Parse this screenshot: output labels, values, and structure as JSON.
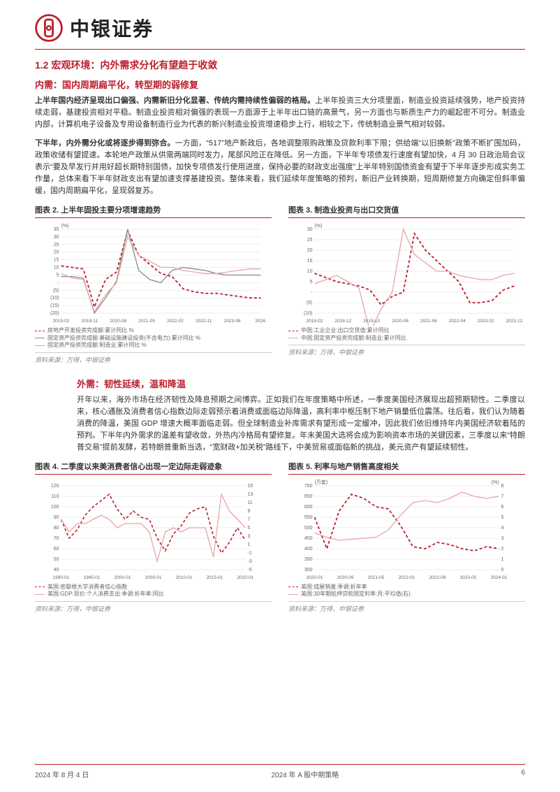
{
  "brand": "中银证券",
  "section_heading": "1.2 宏观环境：内外需求分化有望趋于收敛",
  "sub1_title": "内需：国内周期扁平化，转型期的弱修复",
  "sub1_p1_lead": "上半年国内经济呈现出口偏强、内需新旧分化显著、传统内需持续性偏弱的格局。",
  "sub1_p1_rest": "上半年投资三大分项里面，制造业投资延续强势，地产投资持续走弱，基建投资相对平稳。制造业投资相对偏强的表现一方面源于上半年出口链的高景气，另一方面也与新质生产力的崛起密不可分。制造业内部，计算机电子设备及专用设备制造行业为代表的新兴制造业投资增速稳步上行，相较之下，传统制造业景气相对较弱。",
  "sub1_p2_lead": "下半年，内外需分化或将逐步得到弥合。",
  "sub1_p2_rest": "一方面，“517”地产新政后，各地调整限购政策及贷款利率下限；供给端“以旧换新”政策不断扩围加码，政策收储有望提速。本轮地产政策从供需两端同时发力，尾部风险正在降低。另一方面，下半年专项债发行速度有望加快，4 月 30 日政治局会议表示“要及早发行并用好超长期特别国债，加快专项债发行使用进度，保持必要的财政支出强度”上半年特别国债资金有望于下半年逐步形成实务工作量，总体来看下半年财政支出有望加速支撑基建投资。整体来看，我们延续年度策略的预判，新旧产业转换期，短周期修复方向确定但斜率偏缓，国内周期扁平化，呈现弱复苏。",
  "sub2_title": "外需：韧性延续，温和降温",
  "sub2_p1": "开年以来，海外市场在经济韧性及降息预期之间博弈。正如我们在年度策略中所述，一季度美国经济展现出超预期韧性。二季度以来，核心通胀及消费者信心指数边际走弱预示着消费或面临边际降温，高利率中枢压制下地产销量低位震荡。往后看，我们认为随着消费的降温，美国 GDP 增速大概率面临走弱。但全球制造业补库需求有望形成一定缓冲，因此我们依旧维持年内美国经济软着陆的预判。下半年内外需求的温差有望收敛，外热内冷格局有望修复。年末美国大选将会成为影响资本市场的关键因素，三季度以来“特朗普交易”提前发酵，若特朗普重新当选，“宽财政+加关税”路线下，中美贸易或面临新的挑战，美元资产有望延续韧性。",
  "chart2": {
    "title": "图表 2. 上半年固投主要分项增速趋势",
    "type": "line",
    "ylabel": "(%)",
    "ylim": [
      -20,
      35
    ],
    "yticks": [
      -20,
      -15,
      -10,
      -5,
      0,
      5,
      10,
      15,
      20,
      25,
      30,
      35
    ],
    "ytick_labels": [
      "(20)",
      "(15)",
      "(10)",
      "(5)",
      "-",
      "5",
      "10",
      "15",
      "20",
      "25",
      "30",
      "35"
    ],
    "x_labels": [
      "2019-02",
      "2019-11",
      "2020-08",
      "2021-05",
      "2022-02",
      "2022-11",
      "2023-08",
      "2024-"
    ],
    "grid_color": "#dddddd",
    "background_color": "#ffffff",
    "series": [
      {
        "name": "房地产开发投资完成额:累计同比 %",
        "color": "#bb1e2d",
        "style": "dashed",
        "width": 1.8,
        "values": [
          11,
          10,
          9,
          -16,
          2,
          7,
          34,
          18,
          12,
          6,
          4,
          -4,
          -6,
          -7,
          -7,
          -8,
          -9,
          -10,
          -10
        ]
      },
      {
        "name": "固定资产投资完成额:基础设施建设投资(不含电力):累计同比 %",
        "color": "#888888",
        "style": "solid",
        "width": 1.3,
        "values": [
          4,
          4,
          3,
          -20,
          -10,
          1,
          35,
          8,
          2,
          0,
          8,
          10,
          9,
          8,
          6,
          5,
          5,
          5,
          5
        ]
      },
      {
        "name": "固定资产投资完成额:制造业:累计同比 %",
        "color": "#e8a5a8",
        "style": "solid",
        "width": 1.3,
        "values": [
          6,
          3,
          2,
          -19,
          -8,
          0,
          30,
          18,
          14,
          10,
          10,
          8,
          7,
          6,
          6,
          7,
          8,
          9,
          9
        ]
      }
    ],
    "source": "资料来源：万得，中银证券"
  },
  "chart3": {
    "title": "图表 3. 制造业投资与出口交货值",
    "type": "line",
    "ylabel": "(%)",
    "ylim": [
      -10,
      30
    ],
    "yticks": [
      -10,
      -5,
      0,
      5,
      10,
      15,
      20,
      25,
      30
    ],
    "ytick_labels": [
      "(10)",
      "(5)",
      "-",
      "5",
      "10",
      "15",
      "20",
      "25",
      "30"
    ],
    "x_labels": [
      "2018-02",
      "2018-12",
      "2019-10",
      "2020-08",
      "2021-06",
      "2022-04",
      "2023-02",
      "2023-12"
    ],
    "grid_color": "#dddddd",
    "background_color": "#ffffff",
    "series": [
      {
        "name": "中国:工业企业:出口交货值:累计同比",
        "color": "#bb1e2d",
        "style": "dashed",
        "width": 1.8,
        "values": [
          9,
          7,
          5,
          4,
          3,
          1,
          -6,
          -2,
          0,
          28,
          20,
          15,
          10,
          5,
          -5,
          -5,
          -4,
          1,
          3
        ]
      },
      {
        "name": "中国:固定资产投资完成额:制造业:累计同比",
        "color": "#e8a5a8",
        "style": "solid",
        "width": 1.3,
        "values": [
          4,
          6,
          8,
          5,
          2,
          -19,
          -8,
          0,
          30,
          18,
          14,
          10,
          10,
          8,
          7,
          6,
          6,
          8,
          9
        ]
      }
    ],
    "source": "资料来源：万得，中银证券"
  },
  "chart4": {
    "title": "图表 4. 二季度以来美消费者信心出现一定边际走弱迹象",
    "type": "line-dual",
    "ylabel_left": "",
    "ylabel_right": "",
    "ylim_left": [
      40,
      120
    ],
    "yticks_left": [
      40,
      50,
      60,
      70,
      80,
      90,
      100,
      110,
      120
    ],
    "ylim_right": [
      -5,
      15
    ],
    "yticks_right": [
      -5,
      -3,
      -1,
      1,
      3,
      5,
      7,
      9,
      11,
      13,
      15
    ],
    "x_labels": [
      "1990-01",
      "1995-01",
      "2000-01",
      "2005-01",
      "2010-01",
      "2015-01",
      "2020-01"
    ],
    "grid_color": "#dddddd",
    "background_color": "#ffffff",
    "series": [
      {
        "name": "美国:密歇根大学消费者信心指数",
        "axis": "left",
        "color": "#bb1e2d",
        "style": "dashed",
        "width": 1.6,
        "values": [
          88,
          70,
          78,
          92,
          100,
          106,
          112,
          98,
          88,
          96,
          90,
          88,
          70,
          58,
          74,
          82,
          94,
          98,
          100,
          72,
          56,
          66,
          80,
          68
        ]
      },
      {
        "name": "美国:GDP:现价:个人消费支出:季调:折年率:同比",
        "axis": "right",
        "color": "#e8a5a8",
        "style": "solid",
        "width": 1.3,
        "values": [
          7,
          4,
          6,
          6,
          7,
          8,
          7,
          5,
          6,
          6,
          6,
          4,
          -3,
          4,
          5,
          4,
          5,
          5,
          5,
          -2,
          13,
          9,
          7,
          5
        ]
      }
    ],
    "source": "资料来源：万得，中银证券"
  },
  "chart5": {
    "title": "图表 5. 利率与地产销售高度相关",
    "type": "line-dual",
    "ylabel_left": "(万套)",
    "ylabel_right": "(%)",
    "ylim_left": [
      300,
      700
    ],
    "yticks_left": [
      300,
      350,
      400,
      450,
      500,
      550,
      600,
      650,
      700
    ],
    "ylim_right": [
      0,
      8
    ],
    "yticks_right": [
      0,
      1,
      2,
      3,
      4,
      5,
      6,
      7,
      8
    ],
    "x_labels": [
      "2020-01",
      "2020-09",
      "2021-05",
      "2022-01",
      "2022-09",
      "2023-05",
      "2024-01"
    ],
    "grid_color": "#dddddd",
    "background_color": "#ffffff",
    "series": [
      {
        "name": "美国:成屋销量:季调:折年率",
        "axis": "left",
        "color": "#bb1e2d",
        "style": "dashed",
        "width": 1.8,
        "values": [
          550,
          400,
          580,
          660,
          640,
          600,
          590,
          510,
          410,
          400,
          430,
          420,
          400,
          390,
          410,
          400
        ]
      },
      {
        "name": "美国:30年期抵押贷款固定利率:月:平均值(右)",
        "axis": "right",
        "color": "#e8a5a8",
        "style": "solid",
        "width": 1.3,
        "values": [
          3.5,
          3.1,
          2.8,
          2.9,
          3.0,
          3.1,
          3.8,
          5.2,
          6.4,
          6.6,
          6.4,
          6.8,
          7.4,
          7.0,
          6.8,
          7.0
        ]
      }
    ],
    "source": "资料来源：万得，中银证券"
  },
  "footer": {
    "date": "2024 年 8 月 4 日",
    "doc_title": "2024 年 A 股中期策略",
    "page": "6"
  }
}
